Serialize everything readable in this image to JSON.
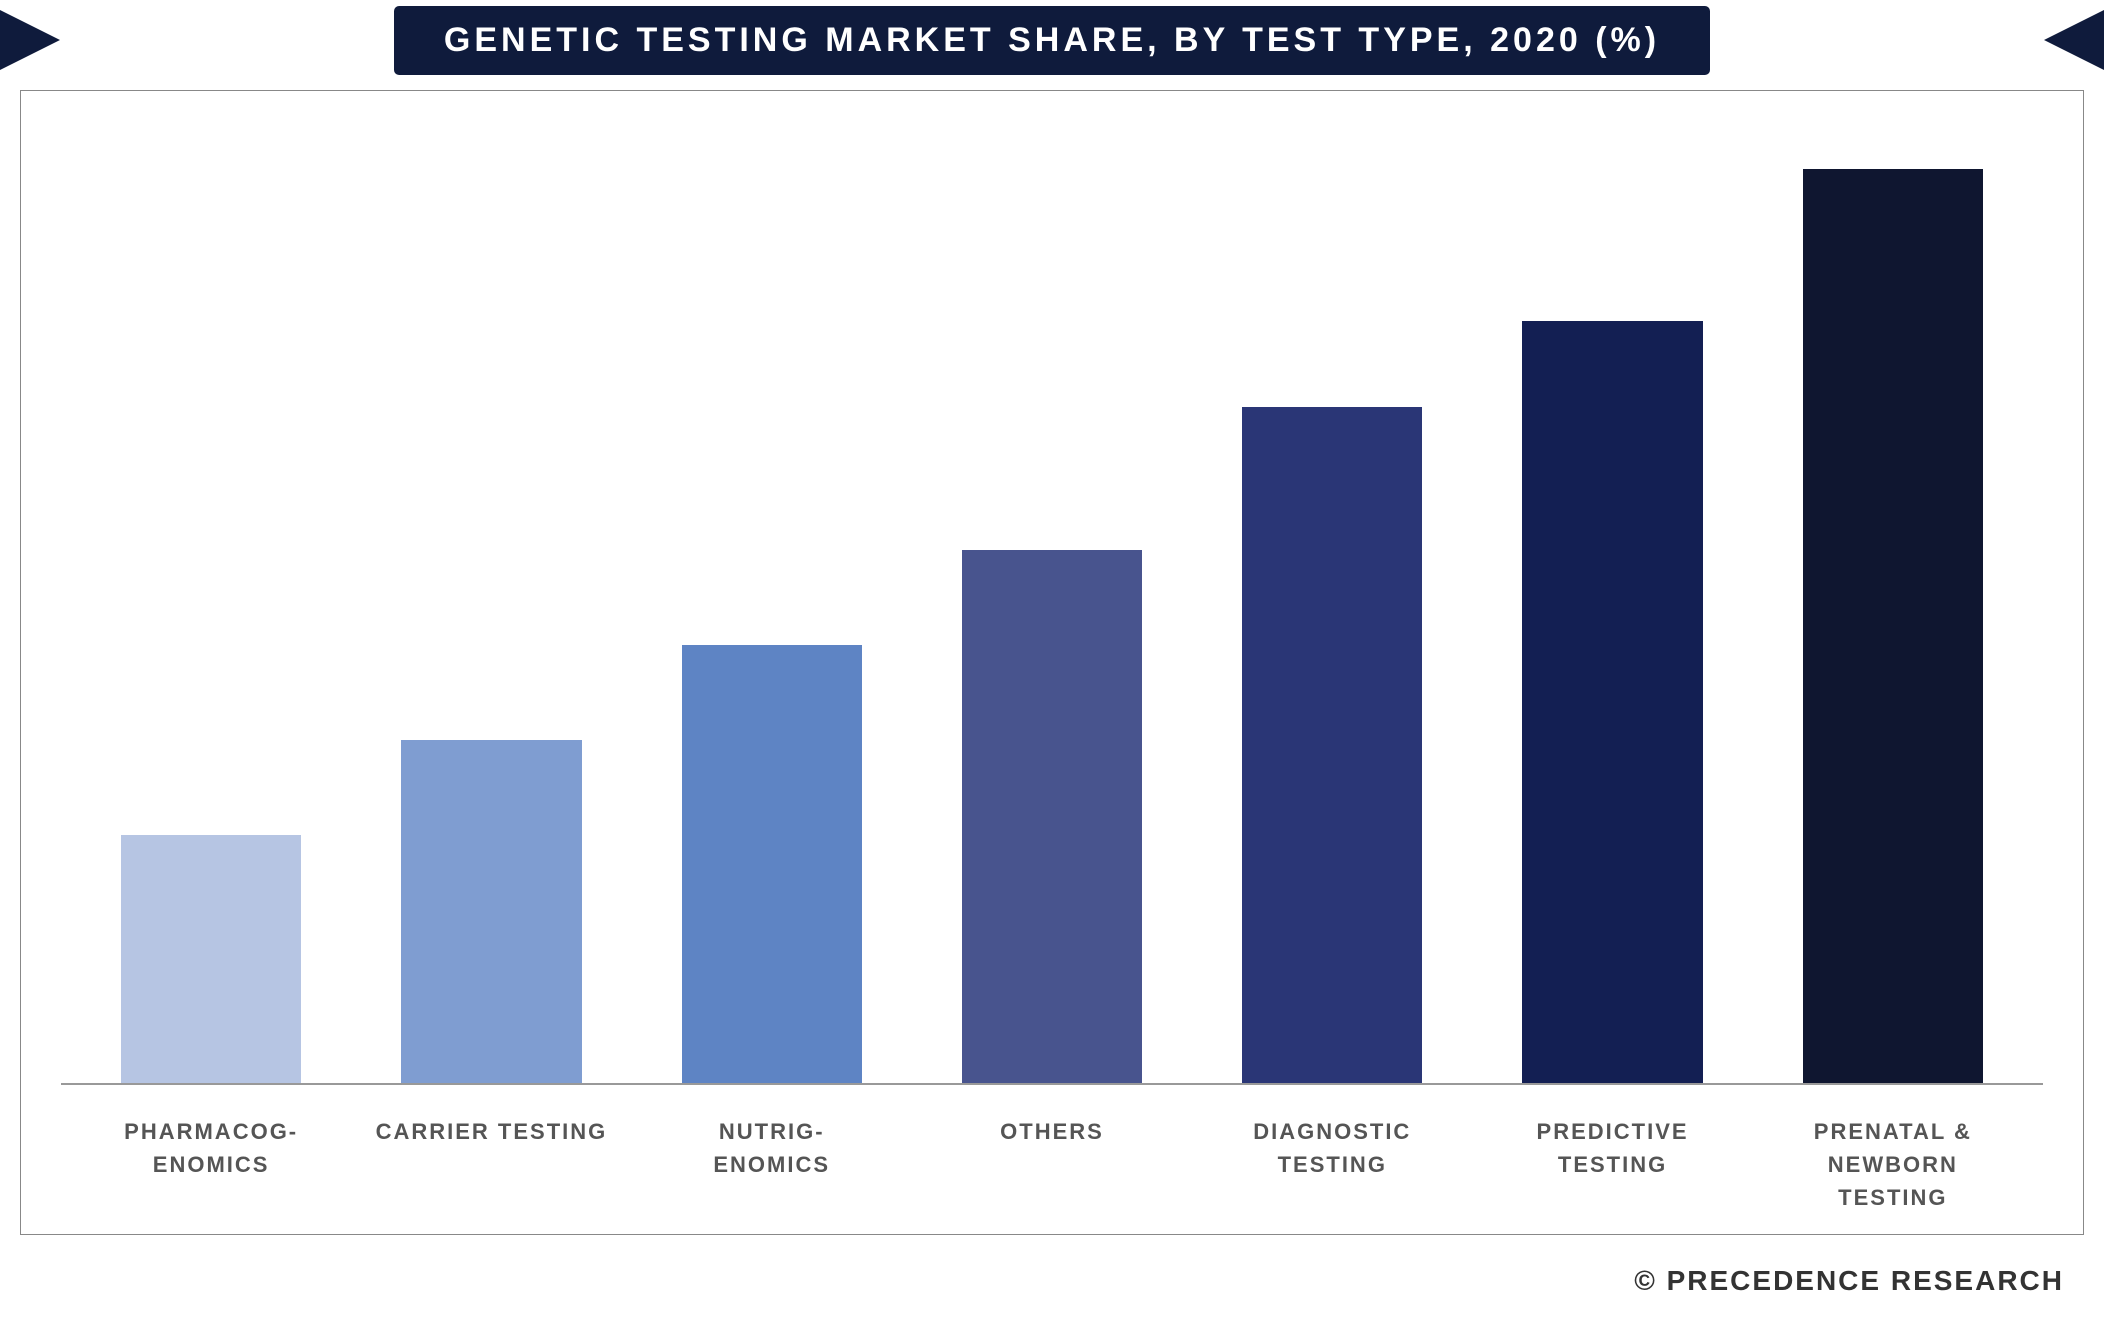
{
  "chart": {
    "type": "bar",
    "title": "GENETIC TESTING MARKET SHARE, BY  TEST TYPE, 2020 (%)",
    "title_color": "#ffffff",
    "title_bg": "#0f1b3c",
    "title_fontsize": 34,
    "background_color": "#ffffff",
    "border_color": "#888888",
    "axis_color": "#999999",
    "categories": [
      "PHARMACOG-\nENOMICS",
      "CARRIER TESTING",
      "NUTRIG-\nENOMICS",
      "OTHERS",
      "DIAGNOSTIC TESTING",
      "PREDICTIVE TESTING",
      "PRENATAL & NEWBORN TESTING"
    ],
    "values": [
      26,
      36,
      46,
      56,
      71,
      80,
      96
    ],
    "bar_colors": [
      "#b6c5e3",
      "#7f9dd1",
      "#5e84c4",
      "#48548e",
      "#2a3676",
      "#131f53",
      "#0f1630"
    ],
    "bar_width_pct": 75,
    "label_fontsize": 22,
    "label_color": "#555555",
    "ylim": [
      0,
      100
    ]
  },
  "attribution": "© PRECEDENCE RESEARCH"
}
